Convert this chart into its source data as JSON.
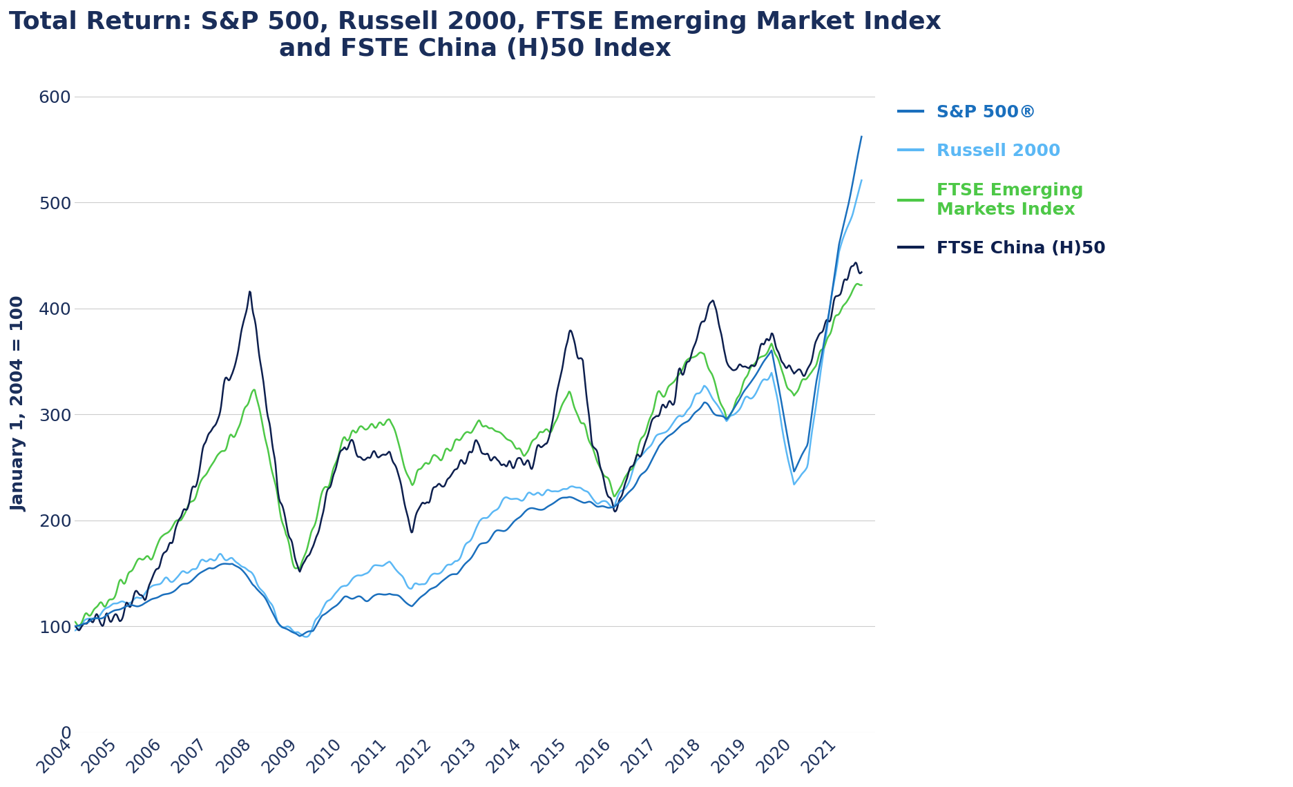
{
  "title_line1": "Total Return: S&P 500, Russell 2000, FTSE Emerging Market Index",
  "title_line2": "and FSTE China (H)50 Index",
  "ylabel": "January 1, 2004 = 100",
  "ylim": [
    0,
    620
  ],
  "yticks": [
    0,
    100,
    200,
    300,
    400,
    500,
    600
  ],
  "background_color": "#ffffff",
  "title_color": "#1a2e5a",
  "grid_color": "#cccccc",
  "colors": {
    "sp500": "#1a6fbd",
    "russell": "#5bb8f5",
    "ftse_em": "#4dc847",
    "ftse_china": "#0d1f4e"
  },
  "legend": {
    "sp500": "S&P 500®",
    "russell": "Russell 2000",
    "ftse_em": "FTSE Emerging\nMarkets Index",
    "ftse_china": "FTSE China (H)50"
  }
}
